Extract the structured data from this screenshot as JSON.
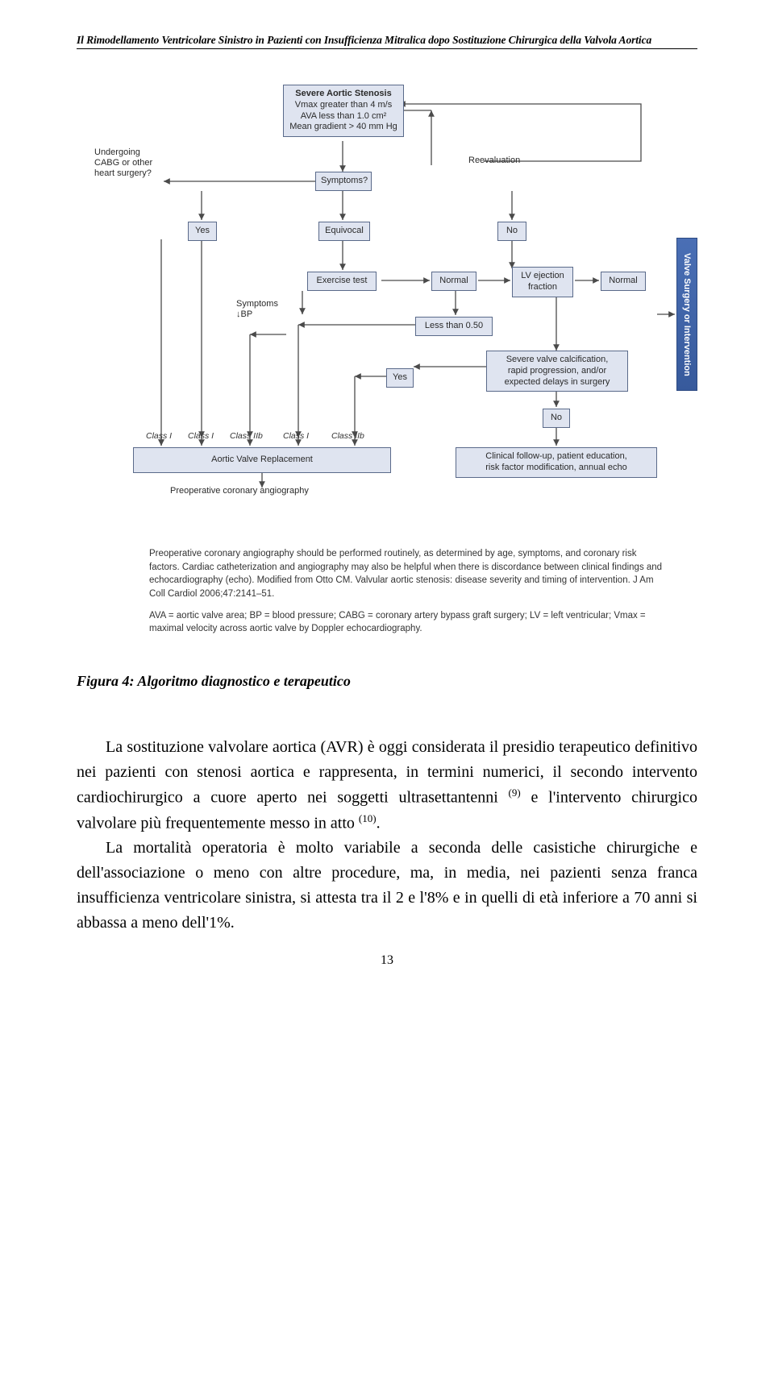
{
  "running_head": "Il Rimodellamento Ventricolare Sinistro in Pazienti con Insufficienza Mitralica dopo Sostituzione Chirurgica della Valvola Aortica",
  "flowchart": {
    "head_title": "Severe Aortic Stenosis",
    "head_sub_1": "Vmax greater than 4 m/s",
    "head_sub_2": "AVA less than 1.0 cm²",
    "head_sub_3": "Mean gradient > 40 mm Hg",
    "undergoing": "Undergoing\nCABG or other\nheart surgery?",
    "reevaluation": "Reevaluation",
    "symptoms_q": "Symptoms?",
    "yes1": "Yes",
    "equivocal": "Equivocal",
    "no1": "No",
    "exercise": "Exercise test",
    "normal": "Normal",
    "lvef": "LV ejection\nfraction",
    "symptoms_bp": "Symptoms\n↓BP",
    "less50": "Less than 0.50",
    "normal2": "Normal",
    "yes2": "Yes",
    "calcif": "Severe valve calcification,\nrapid progression, and/or\nexpected delays in surgery",
    "no2": "No",
    "avr": "Aortic Valve Replacement",
    "followup": "Clinical follow-up, patient education,\nrisk factor modification, annual echo",
    "preop": "Preoperative coronary angiography",
    "side_tab": "Valve Surgery or Intervention",
    "cls1": "Class I",
    "cls2": "Class I",
    "cls3": "Class IIb",
    "cls4": "Class I",
    "cls5": "Class IIb",
    "colors": {
      "box_bg": "#dfe4f0",
      "box_border": "#5a6a8a",
      "arrow": "#4a4a4a",
      "tab_bg": "#4a6fb5"
    }
  },
  "footnote": {
    "para": "Preoperative coronary angiography should be performed routinely, as determined by age, symptoms, and coronary risk factors. Cardiac catheterization and angiography may also be helpful when there is discordance between clinical findings and echocardiography (echo). Modified from Otto CM. Valvular aortic stenosis: disease severity and timing of intervention. J Am Coll Cardiol 2006;47:2141–51.",
    "abbr": "AVA = aortic valve area; BP = blood pressure; CABG = coronary artery bypass graft surgery; LV = left ventricular; Vmax = maximal velocity across aortic valve by Doppler echocardiography."
  },
  "figure_caption": "Figura 4: Algoritmo diagnostico e terapeutico",
  "body": {
    "p1a": "La sostituzione valvolare aortica (AVR) è oggi considerata il presidio terapeutico definitivo nei pazienti con stenosi aortica e rappresenta, in termini numerici, il secondo intervento cardiochirurgico a cuore aperto nei soggetti ultrasettantenni ",
    "ref1": "(9)",
    "p1b": " e l'intervento chirurgico valvolare più frequentemente messo in atto ",
    "ref2": "(10)",
    "p1c": ".",
    "p2": "La mortalità operatoria è molto variabile a seconda delle casistiche chirurgiche e dell'associazione o meno con altre procedure, ma, in media, nei pazienti senza franca insufficienza ventricolare sinistra, si attesta tra il 2 e l'8% e in quelli di età inferiore a 70 anni si abbassa a meno dell'1%."
  },
  "page_number": "13"
}
